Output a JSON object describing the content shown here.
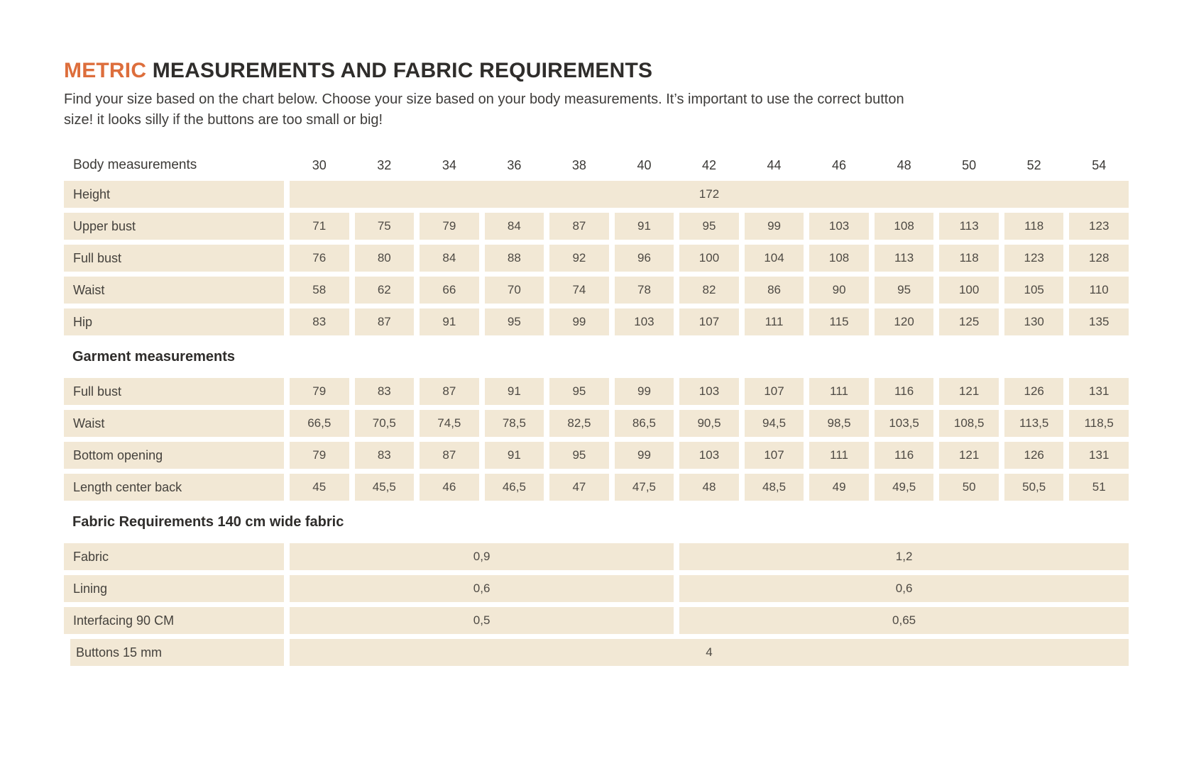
{
  "page": {
    "title_highlight": "METRIC",
    "title_rest": " MEASUREMENTS AND FABRIC REQUIREMENTS",
    "intro_line1": "Find your size based on the chart below. Choose your size based on your body measurements.  It’s important to use the correct button",
    "intro_line2": "size! it looks silly if the buttons are too small or big!"
  },
  "colors": {
    "accent_orange": "#dd6e3c",
    "row_beige": "#f2e8d5",
    "text_dark": "#2f2d2b",
    "text_table": "#4e4a44"
  },
  "size_chart": {
    "header_label": "Body measurements",
    "sizes": [
      "30",
      "32",
      "34",
      "36",
      "38",
      "40",
      "42",
      "44",
      "46",
      "48",
      "50",
      "52",
      "54"
    ],
    "body_rows": [
      {
        "label": "Height",
        "span_value": "172"
      },
      {
        "label": "Upper bust",
        "values": [
          "71",
          "75",
          "79",
          "84",
          "87",
          "91",
          "95",
          "99",
          "103",
          "108",
          "113",
          "118",
          "123"
        ]
      },
      {
        "label": "Full bust",
        "values": [
          "76",
          "80",
          "84",
          "88",
          "92",
          "96",
          "100",
          "104",
          "108",
          "113",
          "118",
          "123",
          "128"
        ]
      },
      {
        "label": "Waist",
        "values": [
          "58",
          "62",
          "66",
          "70",
          "74",
          "78",
          "82",
          "86",
          "90",
          "95",
          "100",
          "105",
          "110"
        ]
      },
      {
        "label": "Hip",
        "values": [
          "83",
          "87",
          "91",
          "95",
          "99",
          "103",
          "107",
          "111",
          "115",
          "120",
          "125",
          "130",
          "135"
        ]
      }
    ],
    "garment_header": "Garment measurements",
    "garment_rows": [
      {
        "label": "Full bust",
        "values": [
          "79",
          "83",
          "87",
          "91",
          "95",
          "99",
          "103",
          "107",
          "111",
          "116",
          "121",
          "126",
          "131"
        ]
      },
      {
        "label": "Waist",
        "values": [
          "66,5",
          "70,5",
          "74,5",
          "78,5",
          "82,5",
          "86,5",
          "90,5",
          "94,5",
          "98,5",
          "103,5",
          "108,5",
          "113,5",
          "118,5"
        ]
      },
      {
        "label": "Bottom opening",
        "values": [
          "79",
          "83",
          "87",
          "91",
          "95",
          "99",
          "103",
          "107",
          "111",
          "116",
          "121",
          "126",
          "131"
        ]
      },
      {
        "label": "Length center back",
        "values": [
          "45",
          "45,5",
          "46",
          "46,5",
          "47",
          "47,5",
          "48",
          "48,5",
          "49",
          "49,5",
          "50",
          "50,5",
          "51"
        ]
      }
    ],
    "fabric_header": "Fabric Requirements 140 cm wide fabric",
    "fabric_rows": [
      {
        "label": "Fabric",
        "left": "0,9",
        "right": "1,2"
      },
      {
        "label": "Lining",
        "left": "0,6",
        "right": "0,6"
      },
      {
        "label": "Interfacing 90 CM",
        "left": "0,5",
        "right": "0,65"
      }
    ],
    "buttons_row": {
      "label": "Buttons 15 mm",
      "span_value": "4"
    }
  }
}
